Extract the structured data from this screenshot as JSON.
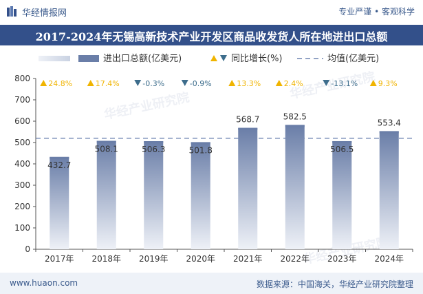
{
  "header": {
    "brand": "华经情报网",
    "tagline": "专业严谨 • 客观科学"
  },
  "title": "2017-2024年无锡高新技术产业开发区商品收发货人所在地进出口总额",
  "legend": {
    "bar_label": "进出口总额(亿美元)",
    "growth_label": "同比增长(%)",
    "avg_label": "均值(亿美元)"
  },
  "footer": {
    "site": "www.huaon.com",
    "source": "数据来源：中国海关，华经产业研究院整理"
  },
  "watermark": "华经产业研究院",
  "colors": {
    "bar_top": "#6a7ea8",
    "bar_bottom": "#eef1f7",
    "up": "#f0b400",
    "down": "#3d6d8c",
    "avg_line": "#4f6aa0",
    "title_bg": "#33508a"
  },
  "chart_data": {
    "type": "bar",
    "categories": [
      "2017年",
      "2018年",
      "2019年",
      "2020年",
      "2021年",
      "2022年",
      "2023年",
      "2024年"
    ],
    "values": [
      432.7,
      508.1,
      506.3,
      501.8,
      568.7,
      582.5,
      506.5,
      553.4
    ],
    "value_labels": [
      "432.7",
      "508.1",
      "506.3",
      "501.8",
      "568.7",
      "582.5",
      "506.5",
      "553.4"
    ],
    "growth": [
      24.8,
      17.4,
      -0.3,
      -0.9,
      13.3,
      2.4,
      -13.1,
      9.3
    ],
    "growth_labels": [
      "24.8%",
      "17.4%",
      "-0.3%",
      "-0.9%",
      "13.3%",
      "2.4%",
      "-13.1%",
      "9.3%"
    ],
    "average": 520,
    "ylim": [
      0,
      800
    ],
    "yticks": [
      "0",
      "100",
      "200",
      "300",
      "400",
      "500",
      "600",
      "700",
      "800"
    ],
    "grid": false,
    "legend_position": "top"
  }
}
